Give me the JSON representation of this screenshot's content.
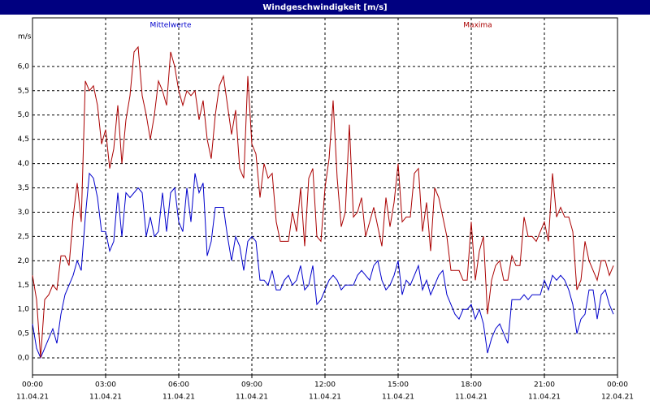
{
  "chart_data": {
    "type": "line",
    "title": "Windgeschwindigkeit [m/s]",
    "y_label": "m/s",
    "x": [
      0,
      10,
      20,
      30,
      40,
      50,
      60,
      70,
      80,
      90,
      100,
      110,
      120,
      130,
      140,
      150,
      160,
      170,
      180,
      190,
      200,
      210,
      220,
      230,
      240,
      250,
      260,
      270,
      280,
      290,
      300,
      310,
      320,
      330,
      340,
      350,
      360,
      370,
      380,
      390,
      400,
      410,
      420,
      430,
      440,
      450,
      460,
      470,
      480,
      490,
      500,
      510,
      520,
      530,
      540,
      550,
      560,
      570,
      580,
      590,
      600,
      610,
      620,
      630,
      640,
      650,
      660,
      670,
      680,
      690,
      700,
      710,
      720,
      730,
      740,
      750,
      760,
      770,
      780,
      790,
      800,
      810,
      820,
      830,
      840,
      850,
      860,
      870,
      880,
      890,
      900,
      910,
      920,
      930,
      940,
      950,
      960,
      970,
      980,
      990,
      1000,
      1010,
      1020,
      1030,
      1040,
      1050,
      1060,
      1070,
      1080,
      1090,
      1100,
      1110,
      1120,
      1130,
      1140,
      1150,
      1160,
      1170,
      1180,
      1190,
      1200,
      1210,
      1220,
      1230,
      1240,
      1250,
      1260,
      1270,
      1280,
      1290,
      1300,
      1310,
      1320,
      1330,
      1340,
      1350,
      1360,
      1370,
      1380,
      1390,
      1400,
      1410,
      1420,
      1430
    ],
    "xlim": [
      0,
      1440
    ],
    "xticks": [
      {
        "value": 0,
        "label": "00:00"
      },
      {
        "value": 180,
        "label": "03:00"
      },
      {
        "value": 360,
        "label": "06:00"
      },
      {
        "value": 540,
        "label": "09:00"
      },
      {
        "value": 720,
        "label": "12:00"
      },
      {
        "value": 900,
        "label": "15:00"
      },
      {
        "value": 1080,
        "label": "18:00"
      },
      {
        "value": 1260,
        "label": "21:00"
      },
      {
        "value": 1440,
        "label": "00:00"
      }
    ],
    "xtick_dates": [
      "11.04.21",
      "11.04.21",
      "11.04.21",
      "11.04.21",
      "11.04.21",
      "11.04.21",
      "11.04.21",
      "11.04.21",
      "12.04.21"
    ],
    "ylim": [
      -0.35,
      7.0
    ],
    "yticks": [
      {
        "value": 0,
        "label": "0,0"
      },
      {
        "value": 0.5,
        "label": "0,5"
      },
      {
        "value": 1,
        "label": "1,0"
      },
      {
        "value": 1.5,
        "label": "1,5"
      },
      {
        "value": 2,
        "label": "2,0"
      },
      {
        "value": 2.5,
        "label": "2,5"
      },
      {
        "value": 3,
        "label": "3,0"
      },
      {
        "value": 3.5,
        "label": "3,5"
      },
      {
        "value": 4,
        "label": "4,0"
      },
      {
        "value": 4.5,
        "label": "4,5"
      },
      {
        "value": 5,
        "label": "5,0"
      },
      {
        "value": 5.5,
        "label": "5,5"
      },
      {
        "value": 6,
        "label": "6,0"
      }
    ],
    "grid": true,
    "series": [
      {
        "name": "Mittelwerte",
        "color": "#0000cc",
        "values": [
          0.7,
          0.2,
          0.0,
          0.2,
          0.4,
          0.6,
          0.3,
          0.9,
          1.3,
          1.5,
          1.7,
          2.0,
          1.8,
          2.9,
          3.8,
          3.7,
          3.3,
          2.6,
          2.6,
          2.2,
          2.4,
          3.4,
          2.5,
          3.4,
          3.3,
          3.4,
          3.5,
          3.4,
          2.5,
          2.9,
          2.5,
          2.6,
          3.4,
          2.6,
          3.4,
          3.5,
          2.8,
          2.6,
          3.5,
          2.8,
          3.8,
          3.4,
          3.6,
          2.1,
          2.4,
          3.1,
          3.1,
          3.1,
          2.5,
          2.0,
          2.5,
          2.3,
          1.8,
          2.4,
          2.5,
          2.4,
          1.6,
          1.6,
          1.5,
          1.8,
          1.4,
          1.4,
          1.6,
          1.7,
          1.5,
          1.6,
          1.9,
          1.4,
          1.5,
          1.9,
          1.1,
          1.2,
          1.4,
          1.6,
          1.7,
          1.6,
          1.4,
          1.5,
          1.5,
          1.5,
          1.7,
          1.8,
          1.7,
          1.6,
          1.9,
          2.0,
          1.6,
          1.4,
          1.5,
          1.7,
          2.0,
          1.3,
          1.6,
          1.5,
          1.7,
          1.9,
          1.4,
          1.6,
          1.3,
          1.5,
          1.7,
          1.8,
          1.3,
          1.1,
          0.9,
          0.8,
          1.0,
          1.0,
          1.1,
          0.8,
          1.0,
          0.7,
          0.1,
          0.4,
          0.6,
          0.7,
          0.5,
          0.3,
          1.2,
          1.2,
          1.2,
          1.3,
          1.2,
          1.3,
          1.3,
          1.3,
          1.6,
          1.4,
          1.7,
          1.6,
          1.7,
          1.6,
          1.4,
          1.1,
          0.5,
          0.8,
          0.9,
          1.4,
          1.4,
          0.8,
          1.3,
          1.4,
          1.1,
          0.9
        ]
      },
      {
        "name": "Maxima",
        "color": "#aa0000",
        "values": [
          1.7,
          1.2,
          0.0,
          1.2,
          1.3,
          1.5,
          1.4,
          2.1,
          2.1,
          1.9,
          2.9,
          3.6,
          2.8,
          5.7,
          5.5,
          5.6,
          5.2,
          4.4,
          4.7,
          3.9,
          4.3,
          5.2,
          4.0,
          4.9,
          5.4,
          6.3,
          6.4,
          5.4,
          5.0,
          4.5,
          5.0,
          5.7,
          5.5,
          5.2,
          6.3,
          6.0,
          5.5,
          5.2,
          5.5,
          5.4,
          5.5,
          4.9,
          5.3,
          4.5,
          4.1,
          5.0,
          5.6,
          5.8,
          5.2,
          4.6,
          5.1,
          3.9,
          3.7,
          5.8,
          4.4,
          4.2,
          3.3,
          4.0,
          3.7,
          3.8,
          2.8,
          2.4,
          2.4,
          2.4,
          3.0,
          2.6,
          3.5,
          2.3,
          3.7,
          3.9,
          2.5,
          2.4,
          3.5,
          4.1,
          5.3,
          3.7,
          2.7,
          3.0,
          4.8,
          2.9,
          3.0,
          3.3,
          2.5,
          2.8,
          3.1,
          2.7,
          2.3,
          3.3,
          2.7,
          3.2,
          4.0,
          2.8,
          2.9,
          2.9,
          3.8,
          3.9,
          2.6,
          3.2,
          2.2,
          3.5,
          3.3,
          2.9,
          2.5,
          1.8,
          1.8,
          1.8,
          1.6,
          1.6,
          2.8,
          1.6,
          2.2,
          2.5,
          0.9,
          1.6,
          1.9,
          2.0,
          1.6,
          1.6,
          2.1,
          1.9,
          1.9,
          2.9,
          2.5,
          2.5,
          2.4,
          2.6,
          2.8,
          2.4,
          3.8,
          2.9,
          3.1,
          2.9,
          2.9,
          2.6,
          1.4,
          1.6,
          2.4,
          2.0,
          1.8,
          1.6,
          2.0,
          2.0,
          1.7,
          1.9
        ]
      }
    ]
  }
}
